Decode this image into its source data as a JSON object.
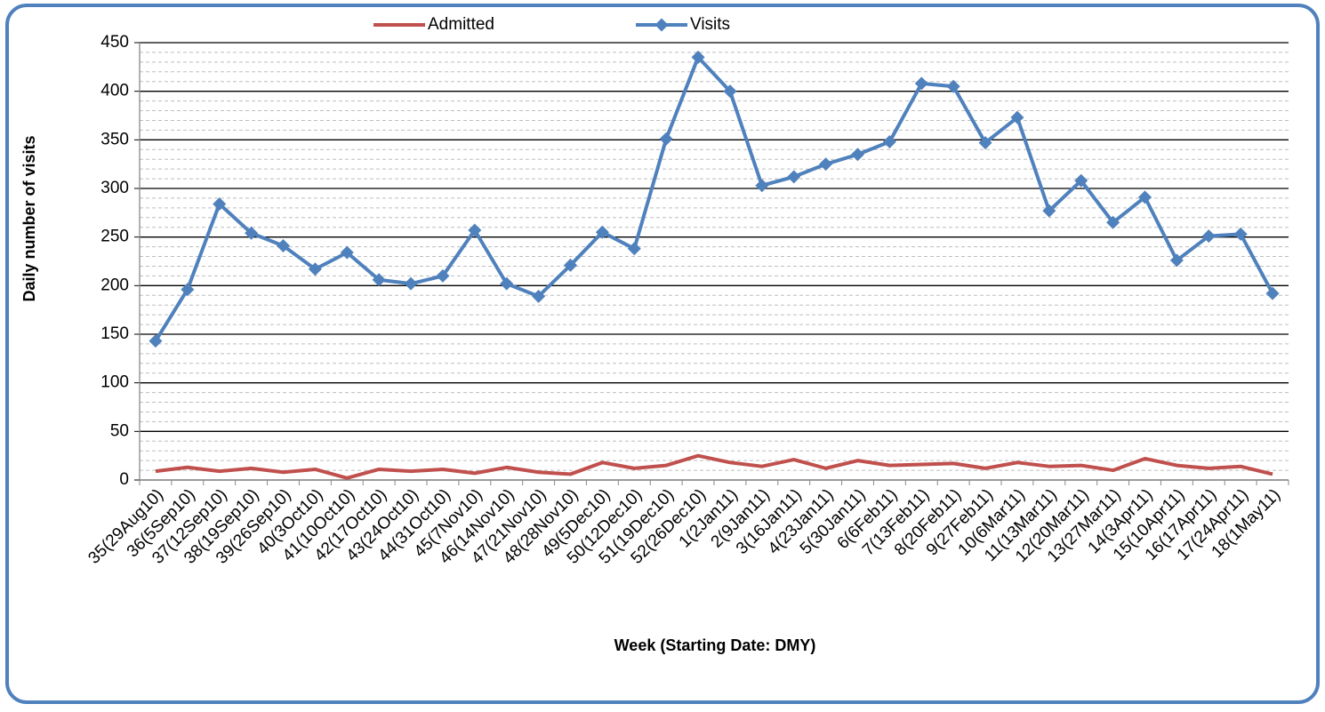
{
  "chart_data": {
    "type": "line",
    "x_label": "Week (Starting Date: DMY)",
    "y_label": "Daily number of visits",
    "categories": [
      "35(29Aug10)",
      "36(5Sep10)",
      "37(12Sep10)",
      "38(19Sep10)",
      "39(26Sep10)",
      "40(3Oct10)",
      "41(10Oct10)",
      "42(17Oct10)",
      "43(24Oct10)",
      "44(31Oct10)",
      "45(7Nov10)",
      "46(14Nov10)",
      "47(21Nov10)",
      "48(28Nov10)",
      "49(5Dec10)",
      "50(12Dec10)",
      "51(19Dec10)",
      "52(26Dec10)",
      "1(2Jan11)",
      "2(9Jan11)",
      "3(16Jan11)",
      "4(23Jan11)",
      "5(30Jan11)",
      "6(6Feb11)",
      "7(13Feb11)",
      "8(20Feb11)",
      "9(27Feb11)",
      "10(6Mar11)",
      "11(13Mar11)",
      "12(20Mar11)",
      "13(27Mar11)",
      "14(3Apr11)",
      "15(10Apr11)",
      "16(17Apr11)",
      "17(24Apr11)",
      "18(1May11)"
    ],
    "series": [
      {
        "name": "Admitted",
        "color": "#c0504d",
        "marker": "none",
        "values": [
          9,
          13,
          9,
          12,
          8,
          11,
          2,
          11,
          9,
          11,
          7,
          13,
          8,
          6,
          18,
          12,
          15,
          25,
          18,
          14,
          21,
          12,
          20,
          15,
          16,
          17,
          12,
          18,
          14,
          15,
          10,
          22,
          15,
          12,
          14,
          6
        ]
      },
      {
        "name": "Visits",
        "color": "#4f81bd",
        "marker": "diamond",
        "values": [
          143,
          196,
          284,
          254,
          241,
          217,
          234,
          206,
          202,
          210,
          257,
          202,
          189,
          221,
          255,
          238,
          351,
          435,
          400,
          303,
          312,
          325,
          335,
          348,
          408,
          405,
          347,
          373,
          277,
          308,
          265,
          291,
          226,
          251,
          253,
          192
        ]
      }
    ],
    "ylim": [
      0,
      450
    ],
    "yticks": [
      0,
      50,
      100,
      150,
      200,
      250,
      300,
      350,
      400,
      450
    ],
    "grid": true,
    "legend": "top"
  }
}
